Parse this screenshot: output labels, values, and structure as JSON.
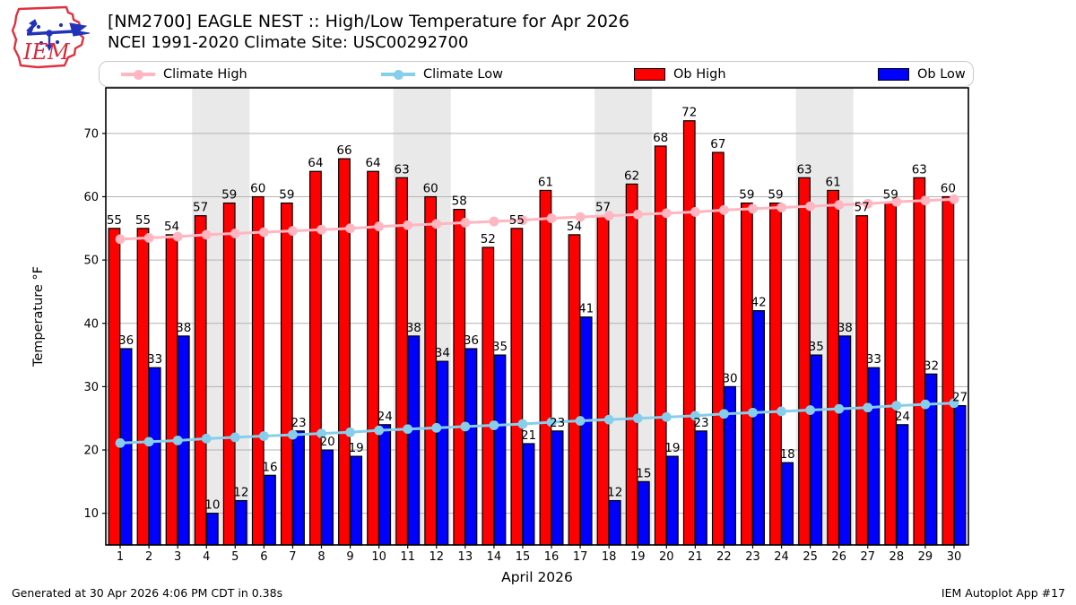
{
  "header": {
    "title_line1": "[NM2700] EAGLE NEST :: High/Low Temperature for Apr 2026",
    "title_line2": "NCEI 1991-2020 Climate Site: USC00292700",
    "logo_text": "IEM"
  },
  "legend": {
    "items": [
      {
        "label": "Climate High",
        "type": "line",
        "color": "#ffb6c1"
      },
      {
        "label": "Climate Low",
        "type": "line",
        "color": "#87ceeb"
      },
      {
        "label": "Ob High",
        "type": "patch",
        "color": "#ff0000"
      },
      {
        "label": "Ob Low",
        "type": "patch",
        "color": "#0000ff"
      }
    ]
  },
  "chart_data": {
    "type": "bar",
    "x": [
      1,
      2,
      3,
      4,
      5,
      6,
      7,
      8,
      9,
      10,
      11,
      12,
      13,
      14,
      15,
      16,
      17,
      18,
      19,
      20,
      21,
      22,
      23,
      24,
      25,
      26,
      27,
      28,
      29,
      30
    ],
    "series": [
      {
        "name": "Ob High",
        "type": "bar",
        "color": "#ff0000",
        "values": [
          55,
          55,
          54,
          57,
          59,
          60,
          59,
          64,
          66,
          64,
          63,
          60,
          58,
          52,
          55,
          61,
          54,
          57,
          62,
          68,
          72,
          67,
          59,
          59,
          63,
          61,
          57,
          59,
          63,
          60
        ]
      },
      {
        "name": "Ob Low",
        "type": "bar",
        "color": "#0000ff",
        "values": [
          36,
          33,
          38,
          10,
          12,
          16,
          23,
          20,
          19,
          24,
          38,
          34,
          36,
          35,
          21,
          23,
          41,
          12,
          15,
          19,
          23,
          30,
          42,
          18,
          35,
          38,
          33,
          24,
          32,
          27
        ]
      },
      {
        "name": "Climate High",
        "type": "line",
        "color": "#ffb6c1",
        "values": [
          53.3,
          53.5,
          53.7,
          54.0,
          54.2,
          54.4,
          54.6,
          54.8,
          55.0,
          55.3,
          55.5,
          55.7,
          55.9,
          56.1,
          56.3,
          56.6,
          56.8,
          57.0,
          57.2,
          57.4,
          57.6,
          57.9,
          58.1,
          58.3,
          58.5,
          58.7,
          58.9,
          59.2,
          59.4,
          59.6
        ]
      },
      {
        "name": "Climate Low",
        "type": "line",
        "color": "#87ceeb",
        "values": [
          21.1,
          21.3,
          21.5,
          21.8,
          22.0,
          22.2,
          22.4,
          22.6,
          22.8,
          23.1,
          23.3,
          23.5,
          23.7,
          23.9,
          24.1,
          24.4,
          24.6,
          24.8,
          25.0,
          25.2,
          25.4,
          25.7,
          25.9,
          26.1,
          26.3,
          26.5,
          26.7,
          27.0,
          27.2,
          27.4
        ]
      }
    ],
    "xlabel": "April 2026",
    "ylabel": "Temperature °F",
    "yticks": [
      10,
      20,
      30,
      40,
      50,
      60,
      70
    ],
    "ylim": [
      5.0,
      77.2
    ],
    "grid": "horizontal",
    "weekend_bands": [
      [
        3.5,
        5.5
      ],
      [
        10.5,
        12.5
      ],
      [
        17.5,
        19.5
      ],
      [
        24.5,
        26.5
      ]
    ],
    "band_color": "#e9e9e9",
    "grid_color": "#b3b3b3",
    "legend_position": "top"
  },
  "footer": {
    "left": "Generated at 30 Apr 2026 4:06 PM CDT in 0.38s",
    "right": "IEM Autoplot App #17"
  }
}
